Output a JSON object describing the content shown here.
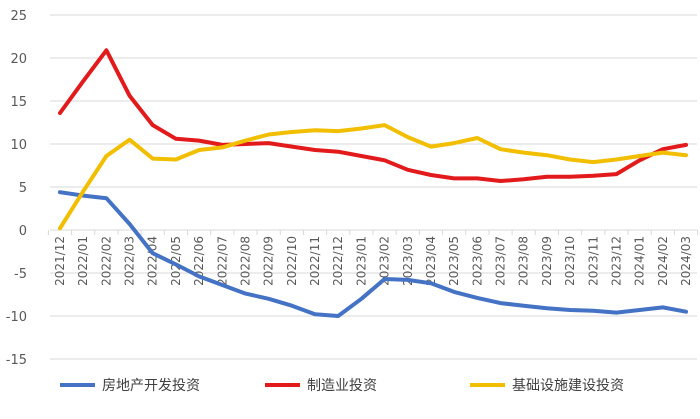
{
  "chart_data": {
    "type": "line",
    "title": "",
    "xlabel": "",
    "ylabel": "",
    "ylim": [
      -15,
      25
    ],
    "yticks": [
      25,
      20,
      15,
      10,
      5,
      0,
      -5,
      -10,
      -15
    ],
    "grid": true,
    "legend_position": "bottom",
    "categories": [
      "2021/12",
      "2022/01",
      "2022/02",
      "2022/03",
      "2022/04",
      "2022/05",
      "2022/06",
      "2022/07",
      "2022/08",
      "2022/09",
      "2022/10",
      "2022/11",
      "2022/12",
      "2023/01",
      "2023/02",
      "2023/03",
      "2023/04",
      "2023/05",
      "2023/06",
      "2023/07",
      "2023/08",
      "2023/09",
      "2023/10",
      "2023/11",
      "2023/12",
      "2024/01",
      "2024/02",
      "2024/03"
    ],
    "series": [
      {
        "name": "房地产开发投资",
        "color": "#4472C4",
        "values": [
          4.4,
          4.0,
          3.7,
          0.7,
          -2.7,
          -4.0,
          -5.4,
          -6.4,
          -7.4,
          -8.0,
          -8.8,
          -9.8,
          -10.0,
          -8.0,
          -5.7,
          -5.8,
          -6.2,
          -7.2,
          -7.9,
          -8.5,
          -8.8,
          -9.1,
          -9.3,
          -9.4,
          -9.6,
          -9.3,
          -9.0,
          -9.5
        ]
      },
      {
        "name": "制造业投资",
        "color": "#E31A1C",
        "values": [
          13.6,
          17.3,
          20.9,
          15.6,
          12.2,
          10.6,
          10.4,
          9.9,
          10.0,
          10.1,
          9.7,
          9.3,
          9.1,
          8.6,
          8.1,
          7.0,
          6.4,
          6.0,
          6.0,
          5.7,
          5.9,
          6.2,
          6.2,
          6.3,
          6.5,
          8.1,
          9.4,
          9.9
        ]
      },
      {
        "name": "基础设施建设投资",
        "color": "#F2BE00",
        "values": [
          0.2,
          4.5,
          8.6,
          10.5,
          8.3,
          8.2,
          9.3,
          9.6,
          10.4,
          11.1,
          11.4,
          11.6,
          11.5,
          11.8,
          12.2,
          10.8,
          9.7,
          10.1,
          10.7,
          9.4,
          9.0,
          8.7,
          8.2,
          7.9,
          8.2,
          8.6,
          9.0,
          8.7
        ]
      }
    ]
  }
}
